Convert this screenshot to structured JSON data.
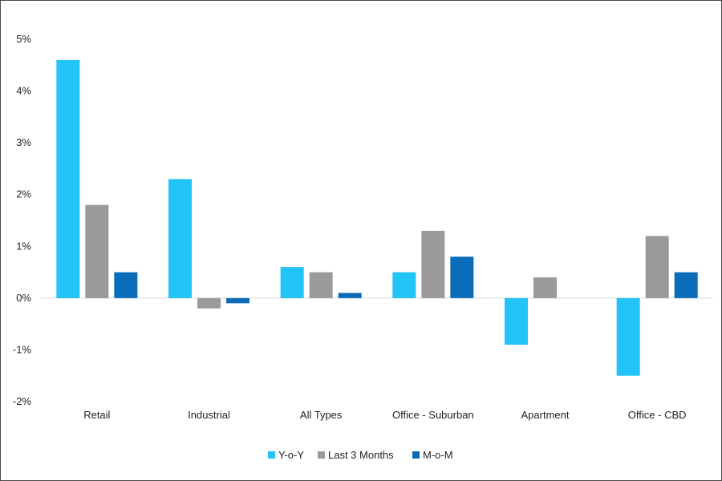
{
  "chart_data": {
    "type": "bar",
    "categories": [
      "Retail",
      "Industrial",
      "All Types",
      "Office - Suburban",
      "Apartment",
      "Office - CBD"
    ],
    "series": [
      {
        "name": "Y-o-Y",
        "color": "#22c3f7",
        "values": [
          4.6,
          2.3,
          0.6,
          0.5,
          -0.9,
          -1.5
        ]
      },
      {
        "name": "Last 3 Months",
        "color": "#9a9a9a",
        "values": [
          1.8,
          -0.2,
          0.5,
          1.3,
          0.4,
          1.2
        ]
      },
      {
        "name": "M-o-M",
        "color": "#0a6cb8",
        "values": [
          0.5,
          -0.1,
          0.1,
          0.8,
          0.0,
          0.5
        ]
      }
    ],
    "yticks": [
      5,
      4,
      3,
      2,
      1,
      0,
      -1,
      -2
    ],
    "ytick_labels": [
      "5%",
      "4%",
      "3%",
      "2%",
      "1%",
      "0%",
      "-1%",
      "-2%"
    ],
    "ylim": [
      -2,
      5
    ],
    "title": "",
    "xlabel": "",
    "ylabel": "",
    "grid": false,
    "legend_position": "bottom-center"
  }
}
